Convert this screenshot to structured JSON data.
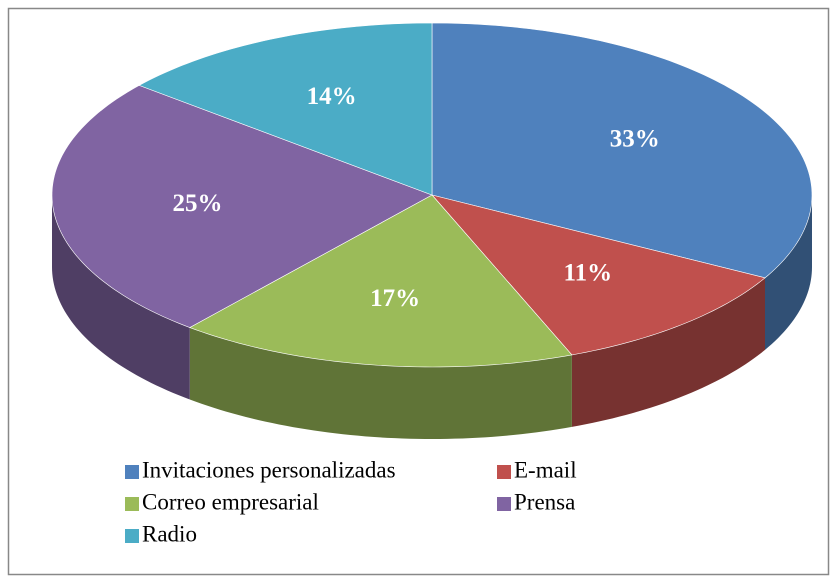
{
  "chart_data": {
    "type": "pie",
    "categories": [
      "Invitaciones personalizadas",
      "E-mail",
      "Correo empresarial",
      "Prensa",
      "Radio"
    ],
    "values": [
      33,
      11,
      17,
      25,
      14
    ],
    "value_labels": [
      "33%",
      "11%",
      "17%",
      "25%",
      "14%"
    ],
    "colors": [
      "#4f81bd",
      "#c0504d",
      "#9bbb59",
      "#8064a2",
      "#4bacc6"
    ],
    "legend": "bottom"
  }
}
